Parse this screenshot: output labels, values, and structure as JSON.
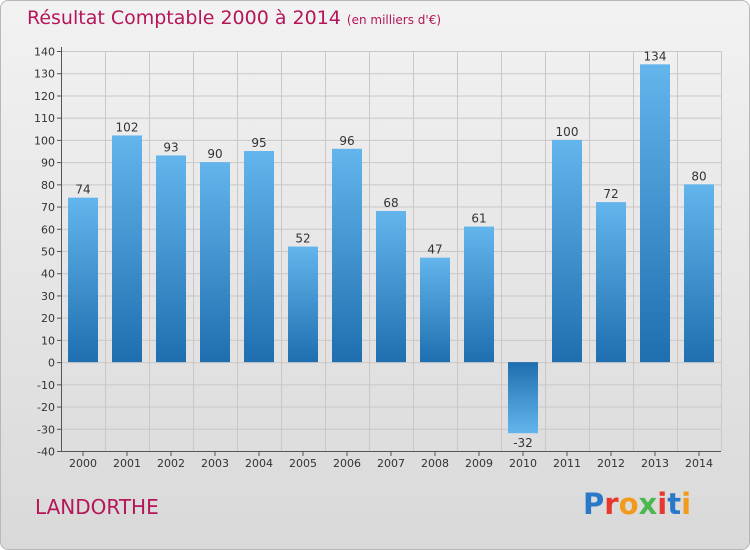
{
  "header": {
    "title": "Résultat Comptable 2000 à 2014",
    "subtitle": "(en milliers d'€)"
  },
  "footer": {
    "commune": "LANDORTHE",
    "logo_text": "Proxiti",
    "logo_colors": [
      "#2a78c8",
      "#e8372c",
      "#f29a1b",
      "#4bb84f",
      "#e8372c",
      "#2a78c8",
      "#f29a1b"
    ]
  },
  "colors": {
    "title": "#b5165a",
    "bar_top": "#63b5ec",
    "bar_bottom": "#1f6fb0",
    "grid": "#c8c8c8",
    "axis": "#555555",
    "text": "#333333"
  },
  "chart_data": {
    "type": "bar",
    "title": "Résultat Comptable 2000 à 2014",
    "xlabel": "",
    "ylabel": "",
    "ylim": [
      -40,
      140
    ],
    "ytick_step": 10,
    "grid": true,
    "categories": [
      "2000",
      "2001",
      "2002",
      "2003",
      "2004",
      "2005",
      "2006",
      "2007",
      "2008",
      "2009",
      "2010",
      "2011",
      "2012",
      "2013",
      "2014"
    ],
    "values": [
      74,
      102,
      93,
      90,
      95,
      52,
      96,
      68,
      47,
      61,
      -32,
      100,
      72,
      134,
      80
    ]
  }
}
